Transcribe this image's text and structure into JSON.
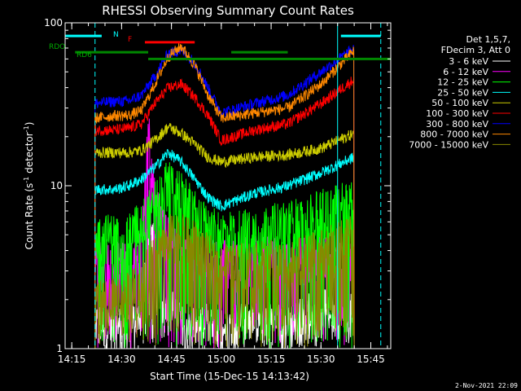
{
  "chart_data": {
    "type": "line",
    "title": "RHESSI Observing Summary Count Rates",
    "xlabel": "Start Time (15-Dec-15 14:13:42)",
    "ylabel_prefix": "Count Rate (s",
    "ylabel_exp": "-1",
    "ylabel_suffix": " detector",
    "ylabel_close": ")",
    "y_scale": "log",
    "ylim": [
      1,
      100
    ],
    "xlim": [
      "14:13",
      "15:51"
    ],
    "x_tick_labels": [
      "14:15",
      "14:30",
      "14:45",
      "15:00",
      "15:15",
      "15:30",
      "15:45"
    ],
    "x_ticks": [
      "14:15",
      "14:30",
      "14:45",
      "15:00",
      "15:15",
      "15:30",
      "15:45"
    ],
    "y_tick_labels": [
      "1",
      "10",
      "100"
    ],
    "footer_date": "2-Nov-2021 22:09",
    "legend": {
      "placement": "right",
      "header": [
        "Det 1,5,7,",
        "FDecim 3, Att 0"
      ],
      "entries": [
        {
          "label": "3 - 6 keV",
          "color": "#ffffff"
        },
        {
          "label": "6 - 12 keV",
          "color": "#ff00ff"
        },
        {
          "label": "12 - 25 keV",
          "color": "#00ff00"
        },
        {
          "label": "25 - 50 keV",
          "color": "#00ffff"
        },
        {
          "label": "50 - 100 keV",
          "color": "#cccc00"
        },
        {
          "label": "100 - 300 keV",
          "color": "#ff0000"
        },
        {
          "label": "300 - 800 keV",
          "color": "#0000ff"
        },
        {
          "label": "800 - 7000 keV",
          "color": "#ff8800"
        },
        {
          "label": "7000 - 15000 keV",
          "color": "#888800"
        }
      ]
    },
    "annotations": {
      "rdo_label": "RDO",
      "rd6_label": "RD6",
      "n_label": "N",
      "f_label": "F"
    },
    "bars": [
      {
        "name": "night",
        "color": "#00ffff",
        "y": 83,
        "ranges": [
          [
            "14:13",
            "14:24"
          ],
          [
            "15:36",
            "15:48"
          ]
        ]
      },
      {
        "name": "flare",
        "color": "#ff0000",
        "y": 76,
        "ranges": [
          [
            "14:37",
            "14:52"
          ]
        ]
      },
      {
        "name": "rdo",
        "color": "#008800",
        "y": 66,
        "ranges": [
          [
            "14:16",
            "14:38"
          ],
          [
            "15:03",
            "15:20"
          ]
        ]
      },
      {
        "name": "rd6",
        "color": "#008800",
        "y": 60,
        "ranges": [
          [
            "14:38",
            "15:51"
          ]
        ]
      }
    ],
    "vlines": [
      {
        "x": "14:13",
        "color": "#00ffff",
        "dash": false
      },
      {
        "x": "14:22",
        "color": "#00ffff",
        "dash": true
      },
      {
        "x": "15:35",
        "color": "#00ffff",
        "dash": false
      },
      {
        "x": "15:48",
        "color": "#00ffff",
        "dash": true
      }
    ],
    "series": [
      {
        "name": "3 - 6 keV",
        "color": "#ffffff",
        "points": [
          [
            "14:22",
            1.5
          ],
          [
            "14:28",
            1.4
          ],
          [
            "14:32",
            1.3
          ],
          [
            "14:36",
            1.6
          ],
          [
            "14:38",
            6
          ],
          [
            "14:40",
            4
          ],
          [
            "14:44",
            2
          ],
          [
            "14:50",
            1.4
          ],
          [
            "15:00",
            1.3
          ],
          [
            "15:10",
            1.6
          ],
          [
            "15:20",
            1.4
          ],
          [
            "15:30",
            1.8
          ],
          [
            "15:40",
            1.6
          ]
        ]
      },
      {
        "name": "6 - 12 keV",
        "color": "#ff00ff",
        "points": [
          [
            "14:22",
            3.5
          ],
          [
            "14:28",
            3.4
          ],
          [
            "14:32",
            3.3
          ],
          [
            "14:36",
            4.0
          ],
          [
            "14:38",
            25
          ],
          [
            "14:40",
            8
          ],
          [
            "14:45",
            4.2
          ],
          [
            "14:50",
            3.6
          ],
          [
            "15:00",
            3.5
          ],
          [
            "15:10",
            3.7
          ],
          [
            "15:20",
            3.5
          ],
          [
            "15:30",
            3.8
          ],
          [
            "15:40",
            3.6
          ]
        ]
      },
      {
        "name": "12 - 25 keV",
        "color": "#00ff00",
        "points": [
          [
            "14:22",
            5
          ],
          [
            "14:28",
            5
          ],
          [
            "14:32",
            5.2
          ],
          [
            "14:36",
            6
          ],
          [
            "14:40",
            8
          ],
          [
            "14:44",
            11
          ],
          [
            "14:48",
            9
          ],
          [
            "14:52",
            7
          ],
          [
            "14:56",
            5.6
          ],
          [
            "15:00",
            5.2
          ],
          [
            "15:10",
            5.6
          ],
          [
            "15:20",
            6
          ],
          [
            "15:30",
            7
          ],
          [
            "15:40",
            8.5
          ]
        ]
      },
      {
        "name": "25 - 50 keV",
        "color": "#00ffff",
        "points": [
          [
            "14:22",
            9.5
          ],
          [
            "14:28",
            9.5
          ],
          [
            "14:32",
            10
          ],
          [
            "14:36",
            11
          ],
          [
            "14:40",
            13
          ],
          [
            "14:44",
            16
          ],
          [
            "14:48",
            14
          ],
          [
            "14:52",
            11
          ],
          [
            "14:56",
            8.5
          ],
          [
            "15:00",
            7.5
          ],
          [
            "15:10",
            9
          ],
          [
            "15:20",
            10
          ],
          [
            "15:30",
            12
          ],
          [
            "15:40",
            15
          ]
        ]
      },
      {
        "name": "50 - 100 keV",
        "color": "#cccc00",
        "points": [
          [
            "14:22",
            16
          ],
          [
            "14:28",
            16
          ],
          [
            "14:32",
            16
          ],
          [
            "14:36",
            16.5
          ],
          [
            "14:40",
            19
          ],
          [
            "14:44",
            23
          ],
          [
            "14:48",
            21
          ],
          [
            "14:52",
            18
          ],
          [
            "14:56",
            15
          ],
          [
            "15:00",
            14
          ],
          [
            "15:10",
            15
          ],
          [
            "15:20",
            15.5
          ],
          [
            "15:30",
            17
          ],
          [
            "15:40",
            21
          ]
        ]
      },
      {
        "name": "100 - 300 keV",
        "color": "#ff0000",
        "points": [
          [
            "14:22",
            22
          ],
          [
            "14:28",
            22
          ],
          [
            "14:32",
            22.5
          ],
          [
            "14:36",
            24
          ],
          [
            "14:40",
            32
          ],
          [
            "14:44",
            40
          ],
          [
            "14:48",
            42
          ],
          [
            "14:52",
            35
          ],
          [
            "14:56",
            27
          ],
          [
            "15:00",
            19
          ],
          [
            "15:10",
            22
          ],
          [
            "15:20",
            24
          ],
          [
            "15:30",
            32
          ],
          [
            "15:40",
            45
          ]
        ]
      },
      {
        "name": "300 - 800 keV",
        "color": "#0000ff",
        "points": [
          [
            "14:22",
            32
          ],
          [
            "14:28",
            33
          ],
          [
            "14:32",
            33
          ],
          [
            "14:36",
            36
          ],
          [
            "14:40",
            47
          ],
          [
            "14:44",
            65
          ],
          [
            "14:48",
            68
          ],
          [
            "14:52",
            57
          ],
          [
            "14:56",
            40
          ],
          [
            "15:00",
            28
          ],
          [
            "15:10",
            32
          ],
          [
            "15:20",
            36
          ],
          [
            "15:30",
            50
          ],
          [
            "15:40",
            70
          ]
        ]
      },
      {
        "name": "800 - 7000 keV",
        "color": "#ff8800",
        "points": [
          [
            "14:22",
            26
          ],
          [
            "14:28",
            27
          ],
          [
            "14:32",
            27
          ],
          [
            "14:36",
            29
          ],
          [
            "14:40",
            42
          ],
          [
            "14:44",
            62
          ],
          [
            "14:48",
            72
          ],
          [
            "14:52",
            55
          ],
          [
            "14:56",
            36
          ],
          [
            "15:00",
            26
          ],
          [
            "15:10",
            28
          ],
          [
            "15:20",
            30
          ],
          [
            "15:30",
            42
          ],
          [
            "15:40",
            68
          ]
        ]
      },
      {
        "name": "7000 - 15000 keV",
        "color": "#888800",
        "points": [
          [
            "14:22",
            2.0
          ],
          [
            "14:28",
            2.0
          ],
          [
            "14:32",
            2.2
          ],
          [
            "14:36",
            2.5
          ],
          [
            "14:40",
            4
          ],
          [
            "14:44",
            5
          ],
          [
            "14:48",
            5
          ],
          [
            "14:52",
            4.5
          ],
          [
            "14:56",
            3.8
          ],
          [
            "15:00",
            3.2
          ],
          [
            "15:10",
            3.5
          ],
          [
            "15:20",
            3.4
          ],
          [
            "15:30",
            4
          ],
          [
            "15:40",
            5
          ]
        ]
      }
    ]
  }
}
